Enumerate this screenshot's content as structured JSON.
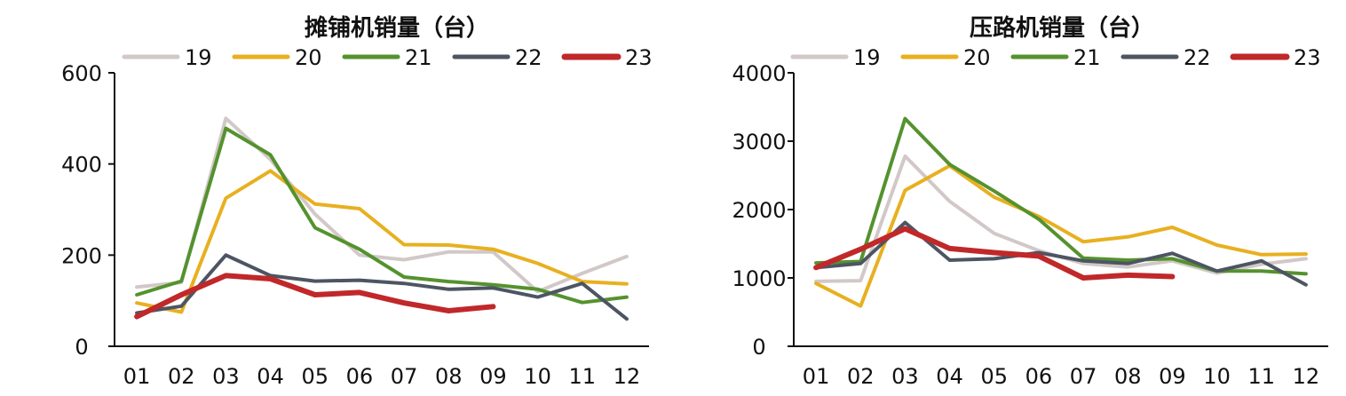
{
  "chart_data": [
    {
      "type": "line",
      "title": "摊铺机销量（台）",
      "categories": [
        "01",
        "02",
        "03",
        "04",
        "05",
        "06",
        "07",
        "08",
        "09",
        "10",
        "11",
        "12"
      ],
      "ylim": [
        0,
        600
      ],
      "yticks": [
        0,
        200,
        400,
        600
      ],
      "legend_position": "top",
      "grid": false,
      "series": [
        {
          "name": "19",
          "color": "#d2c8c8",
          "width": 4,
          "values": [
            130,
            140,
            500,
            410,
            290,
            200,
            190,
            207,
            207,
            120,
            160,
            197
          ]
        },
        {
          "name": "20",
          "color": "#e8b020",
          "width": 4,
          "values": [
            95,
            75,
            325,
            385,
            312,
            302,
            223,
            222,
            213,
            182,
            142,
            137
          ]
        },
        {
          "name": "21",
          "color": "#55922e",
          "width": 4,
          "values": [
            113,
            143,
            478,
            420,
            260,
            213,
            152,
            142,
            135,
            125,
            96,
            108
          ]
        },
        {
          "name": "22",
          "color": "#4d5563",
          "width": 4,
          "values": [
            73,
            88,
            200,
            155,
            143,
            145,
            138,
            125,
            128,
            108,
            138,
            60
          ]
        },
        {
          "name": "23",
          "color": "#c0282a",
          "width": 6,
          "values": [
            65,
            113,
            155,
            148,
            113,
            118,
            95,
            78,
            87,
            null,
            null,
            null
          ]
        }
      ]
    },
    {
      "type": "line",
      "title": "压路机销量（台）",
      "categories": [
        "01",
        "02",
        "03",
        "04",
        "05",
        "06",
        "07",
        "08",
        "09",
        "10",
        "11",
        "12"
      ],
      "ylim": [
        0,
        4000
      ],
      "yticks": [
        0,
        1000,
        2000,
        3000,
        4000
      ],
      "legend_position": "top",
      "grid": false,
      "series": [
        {
          "name": "19",
          "color": "#d2c8c8",
          "width": 4,
          "values": [
            950,
            960,
            2780,
            2120,
            1650,
            1400,
            1210,
            1160,
            1250,
            1070,
            1200,
            1280
          ]
        },
        {
          "name": "20",
          "color": "#e8b020",
          "width": 4,
          "values": [
            920,
            590,
            2280,
            2640,
            2180,
            1900,
            1530,
            1600,
            1740,
            1480,
            1340,
            1350
          ]
        },
        {
          "name": "21",
          "color": "#55922e",
          "width": 4,
          "values": [
            1220,
            1240,
            3330,
            2660,
            2270,
            1860,
            1290,
            1260,
            1280,
            1100,
            1100,
            1060
          ]
        },
        {
          "name": "22",
          "color": "#4d5563",
          "width": 4,
          "values": [
            1150,
            1210,
            1810,
            1260,
            1280,
            1370,
            1250,
            1210,
            1360,
            1100,
            1250,
            900
          ]
        },
        {
          "name": "23",
          "color": "#c0282a",
          "width": 6,
          "values": [
            1150,
            1420,
            1720,
            1430,
            1370,
            1320,
            1000,
            1040,
            1020,
            null,
            null,
            null
          ]
        }
      ]
    }
  ]
}
